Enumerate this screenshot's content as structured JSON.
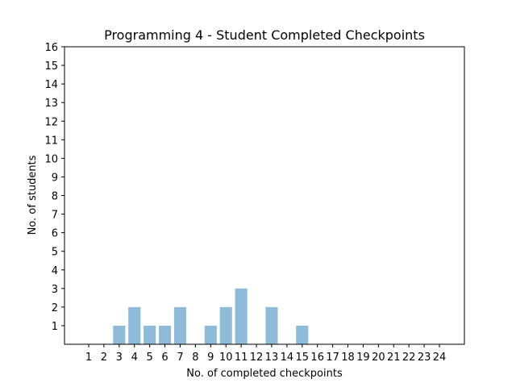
{
  "chart_data": {
    "type": "bar",
    "title": "Programming 4 - Student Completed Checkpoints",
    "xlabel": "No. of completed checkpoints",
    "ylabel": "No. of students",
    "categories": [
      "1",
      "2",
      "3",
      "4",
      "5",
      "6",
      "7",
      "8",
      "9",
      "10",
      "11",
      "12",
      "13",
      "14",
      "15",
      "16",
      "17",
      "18",
      "19",
      "20",
      "21",
      "22",
      "23",
      "24"
    ],
    "values": [
      0,
      0,
      1,
      2,
      1,
      1,
      2,
      0,
      1,
      2,
      3,
      0,
      2,
      0,
      1,
      0,
      0,
      0,
      0,
      0,
      0,
      0,
      0,
      0
    ],
    "ylim": [
      0,
      16
    ],
    "yticks": [
      1,
      2,
      3,
      4,
      5,
      6,
      7,
      8,
      9,
      10,
      11,
      12,
      13,
      14,
      15,
      16
    ],
    "bar_color": "#8fbbd9",
    "grid": false,
    "legend": "none"
  }
}
